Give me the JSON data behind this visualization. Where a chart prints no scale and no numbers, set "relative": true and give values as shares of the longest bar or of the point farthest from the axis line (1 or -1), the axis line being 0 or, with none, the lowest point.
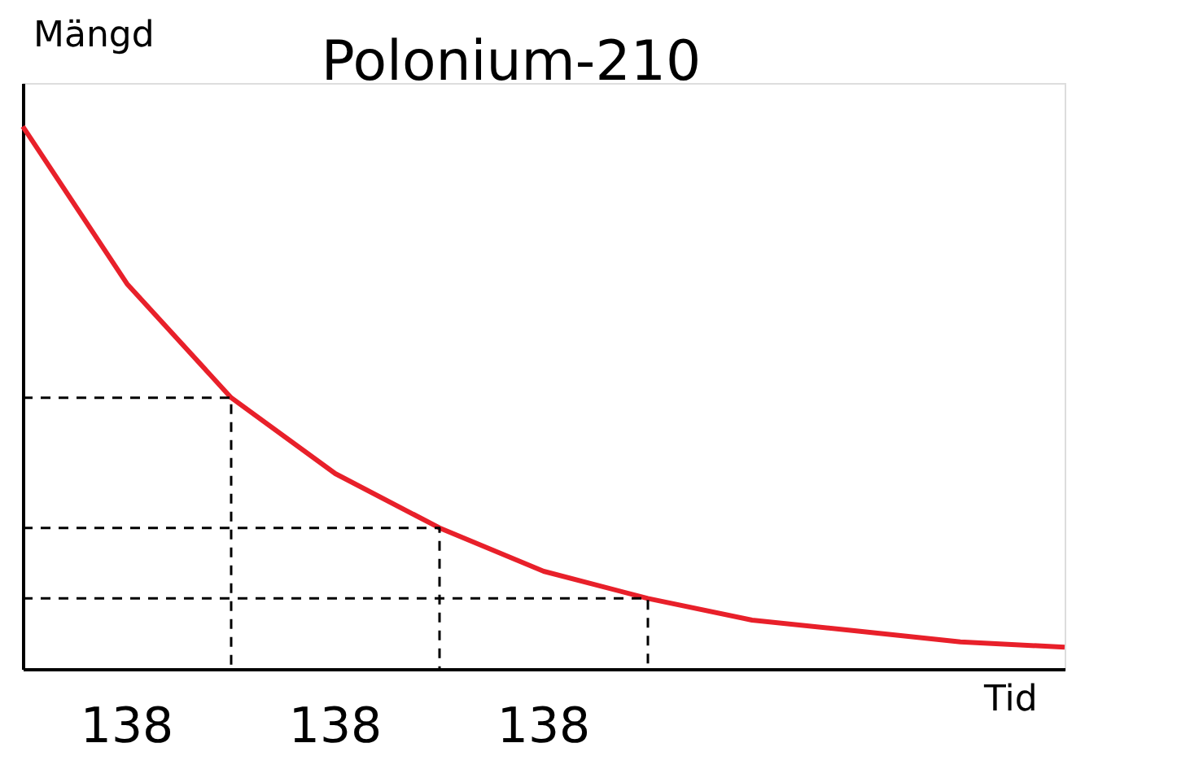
{
  "chart_data": {
    "type": "line",
    "title": "Polonium-210",
    "xlabel": "Tid",
    "ylabel": "Mängd",
    "relative": true,
    "categories": [
      null,
      null,
      null,
      null,
      null,
      null,
      null,
      null,
      null,
      null,
      null
    ],
    "series": [
      {
        "color": "#e8202a",
        "values": [
          1,
          0.71,
          0.5,
          0.36,
          0.26,
          0.18,
          0.13,
          0.09,
          0.07,
          0.05,
          0.04
        ]
      }
    ],
    "ref_lines": [
      {
        "axis": "y",
        "value": 0.5,
        "line_style": "dashed",
        "color": "#000000"
      },
      {
        "axis": "y",
        "value": 0.26,
        "line_style": "dashed",
        "color": "#000000"
      },
      {
        "axis": "y",
        "value": 0.13,
        "line_style": "dashed",
        "color": "#000000"
      }
    ],
    "annotations": [
      "138",
      "138",
      "138"
    ],
    "grid": false
  }
}
